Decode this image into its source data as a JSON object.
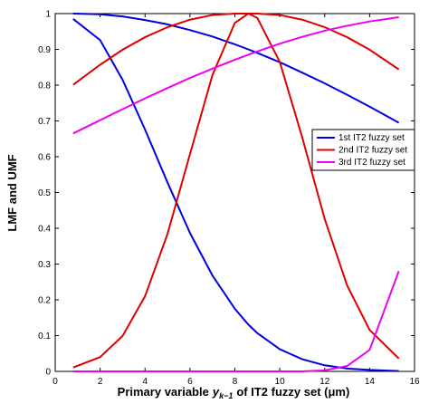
{
  "chart_data": {
    "type": "line",
    "xlabel": [
      "Primary variable",
      "y",
      "k−1",
      "of IT2 fuzzy set (μm)"
    ],
    "ylabel": "LMF and UMF",
    "x": [
      0.8,
      2,
      3,
      4,
      5,
      6,
      7,
      8,
      8.6,
      9,
      10,
      11,
      12,
      13,
      14,
      15.3
    ],
    "series": [
      {
        "name": "1st IT2 fuzzy set",
        "color": "#0000dd",
        "upper": [
          1,
          0.998,
          0.992,
          0.982,
          0.97,
          0.954,
          0.936,
          0.914,
          0.9,
          0.89,
          0.864,
          0.835,
          0.805,
          0.773,
          0.74,
          0.695
        ],
        "lower": [
          0.985,
          0.926,
          0.815,
          0.676,
          0.528,
          0.387,
          0.268,
          0.175,
          0.131,
          0.107,
          0.062,
          0.034,
          0.017,
          0.008,
          0.004,
          0.001
        ]
      },
      {
        "name": "2nd IT2 fuzzy set",
        "color": "#dd0000",
        "upper": [
          0.801,
          0.857,
          0.899,
          0.934,
          0.962,
          0.983,
          0.996,
          1,
          1,
          1,
          0.996,
          0.983,
          0.962,
          0.934,
          0.899,
          0.844
        ],
        "lower": [
          0.011,
          0.04,
          0.099,
          0.21,
          0.384,
          0.607,
          0.828,
          0.974,
          1,
          0.988,
          0.865,
          0.654,
          0.426,
          0.24,
          0.116,
          0.036
        ]
      },
      {
        "name": "3rd IT2 fuzzy set",
        "color": "#ee00ee",
        "upper": [
          0.665,
          0.702,
          0.733,
          0.763,
          0.792,
          0.82,
          0.846,
          0.871,
          0.885,
          0.894,
          0.916,
          0.935,
          0.952,
          0.966,
          0.978,
          0.99
        ],
        "lower": [
          0,
          0,
          0,
          0,
          0,
          0,
          0,
          0,
          0,
          0,
          0,
          0,
          0.003,
          0.015,
          0.06,
          0.28
        ]
      }
    ],
    "xlim": [
      0,
      16
    ],
    "xticks": [
      0,
      2,
      4,
      6,
      8,
      10,
      12,
      14,
      16
    ],
    "ylim": [
      0,
      1
    ],
    "yticks": [
      0,
      0.1,
      0.2,
      0.3,
      0.4,
      0.5,
      0.6,
      0.7,
      0.8,
      0.9,
      1
    ],
    "grid": false,
    "legend_location": "east"
  }
}
